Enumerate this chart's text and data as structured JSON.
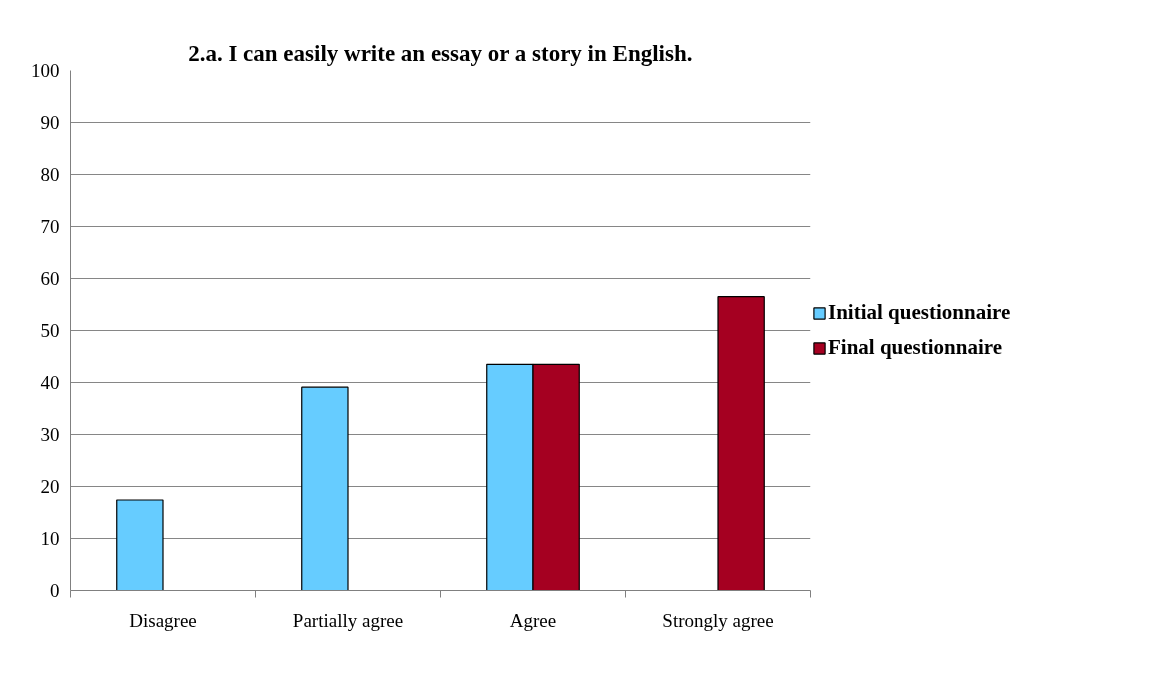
{
  "chart_data": {
    "type": "bar",
    "title": "2.a. I can easily write an essay or a story in English.",
    "categories": [
      "Disagree",
      "Partially agree",
      "Agree",
      "Strongly agree"
    ],
    "series": [
      {
        "name": "Initial questionnaire",
        "color": "#66ccff",
        "values": [
          17.4,
          39.1,
          43.5,
          null
        ]
      },
      {
        "name": "Final questionnaire",
        "color": "#a50021",
        "values": [
          null,
          null,
          43.5,
          56.5
        ]
      }
    ],
    "ylim": [
      0,
      100
    ],
    "yticks": [
      0,
      10,
      20,
      30,
      40,
      50,
      60,
      70,
      80,
      90,
      100
    ],
    "grid": "y",
    "legend": "right"
  }
}
